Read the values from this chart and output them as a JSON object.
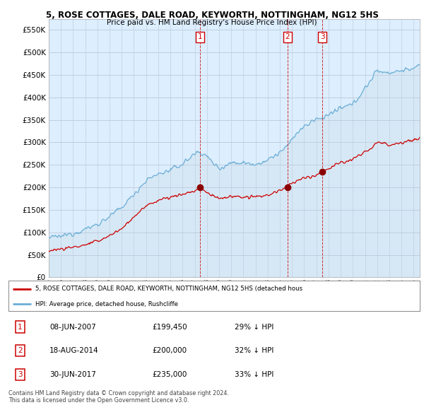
{
  "title": "5, ROSE COTTAGES, DALE ROAD, KEYWORTH, NOTTINGHAM, NG12 5HS",
  "subtitle": "Price paid vs. HM Land Registry's House Price Index (HPI)",
  "ytick_values": [
    0,
    50000,
    100000,
    150000,
    200000,
    250000,
    300000,
    350000,
    400000,
    450000,
    500000,
    550000
  ],
  "ylim": [
    0,
    575000
  ],
  "xlim_start": 1995.0,
  "xlim_end": 2025.5,
  "hpi_color": "#6baed6",
  "hpi_fill_color": "#d6e8f5",
  "price_color": "#cc0000",
  "background_color": "#ffffff",
  "chart_bg_color": "#ddeeff",
  "grid_color": "#c0cfe0",
  "transactions": [
    {
      "label": "1",
      "date": 2007.44,
      "price": 199450
    },
    {
      "label": "2",
      "date": 2014.63,
      "price": 200000
    },
    {
      "label": "3",
      "date": 2017.5,
      "price": 235000
    }
  ],
  "legend_line1": "5, ROSE COTTAGES, DALE ROAD, KEYWORTH, NOTTINGHAM, NG12 5HS (detached hous",
  "legend_line2": "HPI: Average price, detached house, Rushcliffe",
  "table_rows": [
    {
      "num": "1",
      "date": "08-JUN-2007",
      "price": "£199,450",
      "pct": "29% ↓ HPI"
    },
    {
      "num": "2",
      "date": "18-AUG-2014",
      "price": "£200,000",
      "pct": "32% ↓ HPI"
    },
    {
      "num": "3",
      "date": "30-JUN-2017",
      "price": "£235,000",
      "pct": "33% ↓ HPI"
    }
  ],
  "footer": "Contains HM Land Registry data © Crown copyright and database right 2024.\nThis data is licensed under the Open Government Licence v3.0.",
  "hpi_anchors": [
    [
      1995.0,
      88000
    ],
    [
      1996.0,
      91000
    ],
    [
      1997.0,
      98000
    ],
    [
      1998.0,
      107000
    ],
    [
      1999.0,
      118000
    ],
    [
      2000.0,
      135000
    ],
    [
      2001.0,
      155000
    ],
    [
      2002.0,
      185000
    ],
    [
      2003.0,
      215000
    ],
    [
      2004.0,
      230000
    ],
    [
      2005.0,
      238000
    ],
    [
      2006.0,
      252000
    ],
    [
      2007.0,
      275000
    ],
    [
      2007.44,
      280000
    ],
    [
      2008.0,
      268000
    ],
    [
      2009.0,
      242000
    ],
    [
      2010.0,
      255000
    ],
    [
      2011.0,
      255000
    ],
    [
      2012.0,
      252000
    ],
    [
      2013.0,
      260000
    ],
    [
      2014.0,
      278000
    ],
    [
      2014.63,
      290000
    ],
    [
      2015.0,
      310000
    ],
    [
      2016.0,
      335000
    ],
    [
      2017.0,
      352000
    ],
    [
      2017.5,
      355000
    ],
    [
      2018.0,
      362000
    ],
    [
      2019.0,
      375000
    ],
    [
      2020.0,
      385000
    ],
    [
      2021.0,
      420000
    ],
    [
      2022.0,
      460000
    ],
    [
      2023.0,
      455000
    ],
    [
      2024.0,
      460000
    ],
    [
      2025.0,
      465000
    ],
    [
      2025.5,
      468000
    ]
  ],
  "price_anchors": [
    [
      1995.0,
      60000
    ],
    [
      1996.0,
      63000
    ],
    [
      1997.0,
      67000
    ],
    [
      1998.0,
      72000
    ],
    [
      1999.0,
      80000
    ],
    [
      2000.0,
      93000
    ],
    [
      2001.0,
      108000
    ],
    [
      2002.0,
      135000
    ],
    [
      2003.0,
      158000
    ],
    [
      2004.0,
      172000
    ],
    [
      2005.0,
      178000
    ],
    [
      2006.0,
      185000
    ],
    [
      2007.0,
      192000
    ],
    [
      2007.44,
      199450
    ],
    [
      2008.0,
      188000
    ],
    [
      2009.0,
      175000
    ],
    [
      2010.0,
      180000
    ],
    [
      2011.0,
      178000
    ],
    [
      2012.0,
      178000
    ],
    [
      2013.0,
      183000
    ],
    [
      2014.0,
      193000
    ],
    [
      2014.63,
      200000
    ],
    [
      2015.0,
      210000
    ],
    [
      2016.0,
      220000
    ],
    [
      2017.0,
      228000
    ],
    [
      2017.5,
      235000
    ],
    [
      2018.0,
      242000
    ],
    [
      2019.0,
      255000
    ],
    [
      2020.0,
      262000
    ],
    [
      2021.0,
      278000
    ],
    [
      2022.0,
      300000
    ],
    [
      2023.0,
      295000
    ],
    [
      2024.0,
      300000
    ],
    [
      2025.0,
      305000
    ],
    [
      2025.5,
      308000
    ]
  ]
}
